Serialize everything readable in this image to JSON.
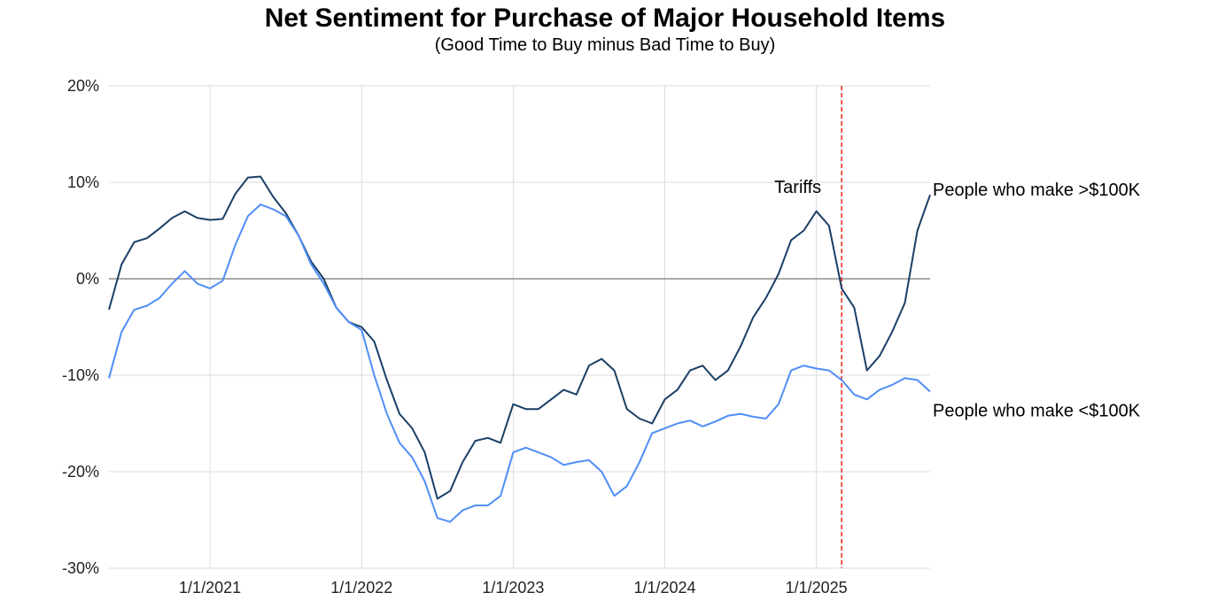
{
  "chart_data": {
    "type": "line",
    "title": "Net Sentiment for Purchase of Major Household Items",
    "subtitle": "(Good Time to Buy minus Bad Time to Buy)",
    "xlabel": "",
    "ylabel": "",
    "ylim": [
      -30,
      20
    ],
    "xlim": [
      "2020-05",
      "2025-10"
    ],
    "grid": true,
    "y_ticks": [
      "20%",
      "10%",
      "0%",
      "-10%",
      "-20%",
      "-30%"
    ],
    "y_tick_values": [
      20,
      10,
      0,
      -10,
      -20,
      -30
    ],
    "x_ticks": [
      "1/1/2021",
      "1/1/2022",
      "1/1/2023",
      "1/1/2024",
      "1/1/2025"
    ],
    "x_tick_values": [
      "2021-01",
      "2022-01",
      "2023-01",
      "2024-01",
      "2025-01"
    ],
    "colors": {
      "high": "#1a3f66",
      "low": "#4f8ef7",
      "event": "#e8302a",
      "zero": "#777777",
      "grid": "#dddddd"
    },
    "x": [
      "2020-05",
      "2020-06",
      "2020-07",
      "2020-08",
      "2020-09",
      "2020-10",
      "2020-11",
      "2020-12",
      "2021-01",
      "2021-02",
      "2021-03",
      "2021-04",
      "2021-05",
      "2021-06",
      "2021-07",
      "2021-08",
      "2021-09",
      "2021-10",
      "2021-11",
      "2021-12",
      "2022-01",
      "2022-02",
      "2022-03",
      "2022-04",
      "2022-05",
      "2022-06",
      "2022-07",
      "2022-08",
      "2022-09",
      "2022-10",
      "2022-11",
      "2022-12",
      "2023-01",
      "2023-02",
      "2023-03",
      "2023-04",
      "2023-05",
      "2023-06",
      "2023-07",
      "2023-08",
      "2023-09",
      "2023-10",
      "2023-11",
      "2023-12",
      "2024-01",
      "2024-02",
      "2024-03",
      "2024-04",
      "2024-05",
      "2024-06",
      "2024-07",
      "2024-08",
      "2024-09",
      "2024-10",
      "2024-11",
      "2024-12",
      "2025-01",
      "2025-02",
      "2025-03",
      "2025-04",
      "2025-05",
      "2025-06",
      "2025-07",
      "2025-08",
      "2025-09",
      "2025-10"
    ],
    "series": [
      {
        "name": "People who make >$100K",
        "key": "high",
        "values": [
          -3.2,
          1.5,
          3.8,
          4.2,
          5.2,
          6.3,
          7.0,
          6.3,
          6.1,
          6.2,
          8.8,
          10.5,
          10.6,
          8.5,
          6.8,
          4.5,
          1.8,
          0,
          -3.0,
          -4.5,
          -5.0,
          -6.5,
          -10.5,
          -14,
          -15.5,
          -18,
          -22.8,
          -22,
          -19,
          -16.8,
          -16.5,
          -17,
          -13,
          -13.5,
          -13.5,
          -12.5,
          -11.5,
          -12,
          -9,
          -8.3,
          -9.5,
          -13.5,
          -14.5,
          -15,
          -12.5,
          -11.5,
          -9.5,
          -9,
          -10.5,
          -9.5,
          -7,
          -4,
          -2,
          0.5,
          4,
          5,
          7,
          5.5,
          -1,
          -3,
          -9.5,
          -8,
          -5.5,
          -2.5,
          5,
          8.7
        ]
      },
      {
        "name": "People who make <$100K",
        "key": "low",
        "values": [
          -10.3,
          -5.5,
          -3.2,
          -2.8,
          -2.0,
          -0.5,
          0.8,
          -0.5,
          -1.0,
          -0.2,
          3.5,
          6.5,
          7.7,
          7.2,
          6.5,
          4.5,
          1.5,
          -0.5,
          -3.0,
          -4.5,
          -5.3,
          -10,
          -14,
          -17,
          -18.5,
          -21,
          -24.8,
          -25.2,
          -24,
          -23.5,
          -23.5,
          -22.5,
          -18,
          -17.5,
          -18,
          -18.5,
          -19.3,
          -19,
          -18.8,
          -20,
          -22.5,
          -21.5,
          -19,
          -16,
          -15.5,
          -15,
          -14.7,
          -15.3,
          -14.8,
          -14.2,
          -14.0,
          -14.3,
          -14.5,
          -13.0,
          -9.5,
          -9.0,
          -9.3,
          -9.5,
          -10.5,
          -12.0,
          -12.5,
          -11.5,
          -11.0,
          -10.3,
          -10.5,
          -11.7
        ]
      }
    ],
    "annotations": [
      {
        "text": "Tariffs",
        "x": "2025-03",
        "style": "vertical-dashed-line"
      }
    ]
  }
}
